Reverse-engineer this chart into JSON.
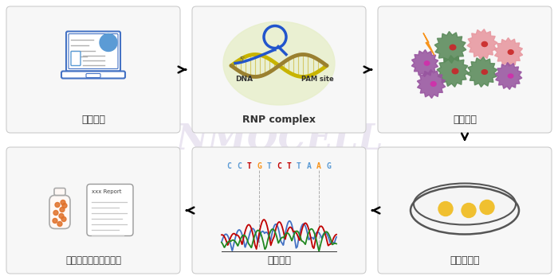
{
  "bg_color": "#ffffff",
  "watermark_text": "NMOCELL",
  "watermark_color": "#dcd4e8",
  "labels": {
    "step1": "设计方案",
    "step2": "RNP complex",
    "step3": "细胞转染",
    "step4": "单克隆形成",
    "step5": "测序验证",
    "step6": "质检冻存（提供报告）"
  },
  "label_fontsize": 9,
  "seq_chars": [
    "C",
    "C",
    "T",
    "G",
    "T",
    "C",
    "T",
    "T",
    "A",
    "A",
    "G"
  ],
  "seq_colors": [
    "#5b9bd5",
    "#5b9bd5",
    "#c00000",
    "#f7941d",
    "#5b9bd5",
    "#c00000",
    "#c00000",
    "#5b9bd5",
    "#5b9bd5",
    "#f7941d",
    "#5b9bd5"
  ],
  "dna_label": "DNA",
  "pam_label": "PAM site",
  "report_label": "xxx Report",
  "box_color": "#f7f7f7",
  "box_edge": "#cccccc"
}
